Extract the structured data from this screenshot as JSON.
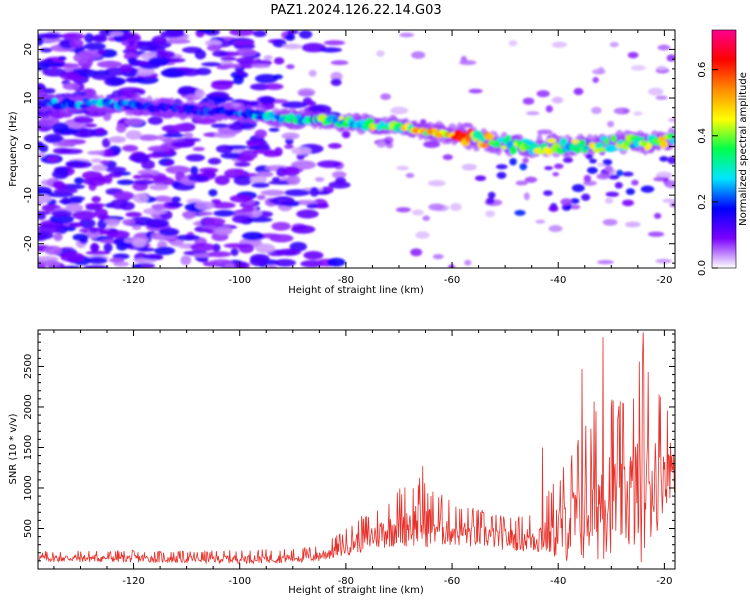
{
  "title": "PAZ1.2024.126.22.14.G03",
  "chart_data": [
    {
      "type": "heatmap",
      "xlabel": "Height of straight line (km)",
      "ylabel": "Frequency (Hz)",
      "xlim": [
        -138,
        -18
      ],
      "ylim": [
        -25,
        24
      ],
      "xticks": [
        -120,
        -100,
        -80,
        -60,
        -40,
        -20
      ],
      "yticks": [
        -20,
        -10,
        0,
        10,
        20
      ],
      "colorbar": {
        "label": "Normalized spectral amplitude",
        "range": [
          0.0,
          0.72
        ],
        "ticks": [
          0.0,
          0.2,
          0.4,
          0.6
        ],
        "colormap": "gist_ncar",
        "colors": [
          "#ffffff",
          "#7b00ff",
          "#0000ff",
          "#00e5ff",
          "#00ff4c",
          "#ffff00",
          "#ff8c00",
          "#ff0000",
          "#ff0090"
        ]
      },
      "ridge": {
        "x": [
          -136,
          -126,
          -115,
          -100,
          -90,
          -80,
          -70,
          -60,
          -50,
          -40,
          -30,
          -20,
          -18
        ],
        "y": [
          8.8,
          9.0,
          8.0,
          7.0,
          5.8,
          5.0,
          4.0,
          2.5,
          0.5,
          0.0,
          0.5,
          1.0,
          1.3
        ],
        "peak_amplitude": [
          0.28,
          0.33,
          0.18,
          0.3,
          0.38,
          0.48,
          0.55,
          0.7,
          0.52,
          0.46,
          0.5,
          0.52,
          0.5
        ]
      }
    },
    {
      "type": "line",
      "xlabel": "Height of straight line (km)",
      "ylabel": "SNR (10 * v/v)",
      "xlim": [
        -138,
        -18
      ],
      "ylim": [
        0,
        2950
      ],
      "xticks": [
        -120,
        -100,
        -80,
        -60,
        -40,
        -20
      ],
      "yticks": [
        500,
        1000,
        1500,
        2000,
        2500
      ],
      "color": "#e8302a",
      "envelope": {
        "x": [
          -138,
          -125,
          -110,
          -100,
          -90,
          -85,
          -82,
          -80,
          -78,
          -75,
          -72,
          -70,
          -68,
          -66,
          -64,
          -62,
          -60,
          -55,
          -50,
          -47,
          -45,
          -43,
          -40,
          -38,
          -36,
          -34,
          -32,
          -30,
          -28,
          -26,
          -24,
          -22,
          -20,
          -18
        ],
        "baseline": [
          120,
          120,
          110,
          110,
          120,
          140,
          200,
          250,
          300,
          350,
          420,
          460,
          480,
          480,
          460,
          440,
          420,
          380,
          340,
          330,
          320,
          340,
          380,
          420,
          480,
          560,
          640,
          720,
          700,
          700,
          760,
          900,
          1100,
          1200
        ],
        "amplitude": [
          100,
          110,
          110,
          120,
          130,
          150,
          200,
          250,
          300,
          380,
          450,
          550,
          600,
          650,
          550,
          480,
          400,
          360,
          300,
          320,
          400,
          480,
          800,
          1000,
          1200,
          1400,
          1600,
          1500,
          1300,
          1500,
          2000,
          1600,
          1000,
          700
        ]
      },
      "peaks": [
        {
          "x": -31.5,
          "y": 2860
        },
        {
          "x": -24.0,
          "y": 2920
        },
        {
          "x": -35.5,
          "y": 2470
        },
        {
          "x": -65.5,
          "y": 1270
        },
        {
          "x": -43.0,
          "y": 1500
        }
      ]
    }
  ]
}
